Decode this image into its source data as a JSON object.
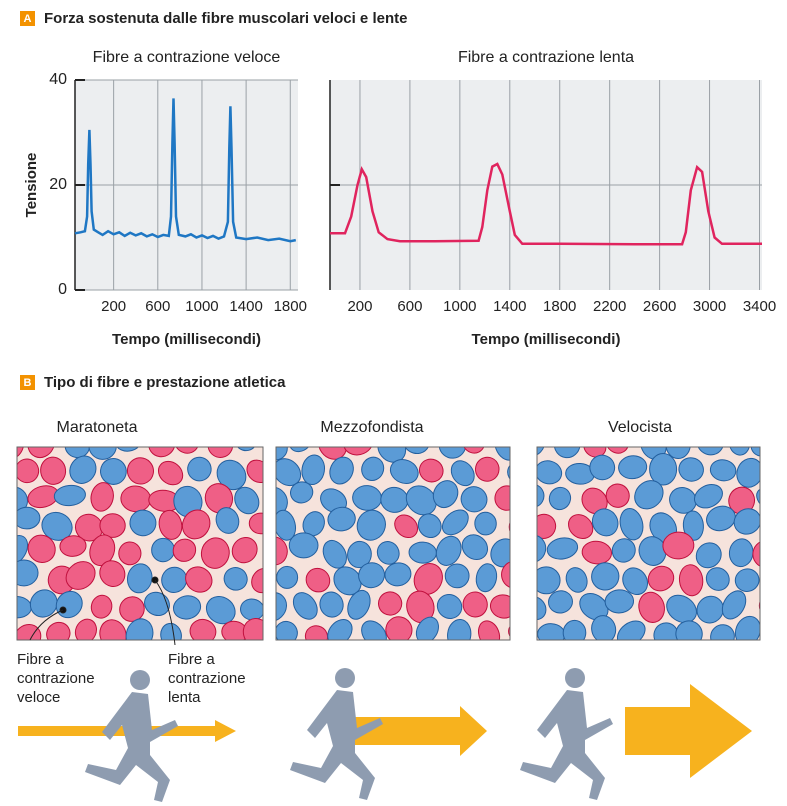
{
  "panel_a": {
    "letter": "A",
    "title": "Forza sostenuta dalle fibre muscolari veloci e lente"
  },
  "chart_data": [
    {
      "type": "line",
      "title": "Fibre a contrazione veloce",
      "y_label": "Tensione",
      "x_label": "Tempo (millisecondi)",
      "color": "#1f77c4",
      "xlim": [
        -150,
        1870
      ],
      "xticks": [
        200,
        600,
        1000,
        1400,
        1800
      ],
      "ylim": [
        0,
        40
      ],
      "yticks": [
        0,
        20,
        40
      ],
      "grid": true,
      "x": [
        -150,
        -100,
        -60,
        -40,
        -30,
        -20,
        -10,
        0,
        20,
        60,
        100,
        150,
        200,
        250,
        300,
        350,
        400,
        450,
        500,
        550,
        600,
        650,
        700,
        720,
        732,
        742,
        752,
        765,
        790,
        850,
        900,
        950,
        1000,
        1050,
        1100,
        1150,
        1200,
        1235,
        1248,
        1258,
        1268,
        1282,
        1310,
        1400,
        1500,
        1600,
        1700,
        1800,
        1850
      ],
      "values": [
        10.8,
        11,
        11.2,
        14,
        24,
        30.5,
        24,
        15,
        11.5,
        11,
        10.5,
        11.2,
        10.6,
        11,
        10.3,
        10.9,
        10.4,
        10.8,
        10.2,
        10.6,
        10.1,
        10.5,
        10.3,
        14,
        28,
        36.5,
        28,
        14,
        10.5,
        10.2,
        10.6,
        10,
        10.4,
        9.9,
        10.3,
        9.8,
        10.2,
        13,
        27,
        35,
        27,
        13,
        10,
        9.7,
        10,
        9.5,
        9.8,
        9.3,
        9.5
      ]
    },
    {
      "type": "line",
      "title": "Fibre a contrazione lenta",
      "x_label": "Tempo (millisecondi)",
      "color": "#e0245e",
      "xlim": [
        -40,
        3420
      ],
      "xticks": [
        200,
        600,
        1000,
        1400,
        1800,
        2200,
        2600,
        3000,
        3400
      ],
      "ylim": [
        0,
        40
      ],
      "yticks": [
        20
      ],
      "grid": true,
      "x": [
        -40,
        80,
        130,
        180,
        215,
        250,
        300,
        350,
        420,
        520,
        800,
        1150,
        1180,
        1220,
        1260,
        1300,
        1340,
        1400,
        1440,
        1500,
        1800,
        2400,
        2780,
        2810,
        2850,
        2900,
        2940,
        2990,
        3040,
        3100,
        3420
      ],
      "values": [
        10.8,
        10.8,
        14,
        20,
        23,
        21.5,
        15,
        11,
        9.7,
        9.3,
        9.3,
        9.4,
        12,
        19,
        23.5,
        24,
        22,
        15,
        10.5,
        8.8,
        8.8,
        8.7,
        8.7,
        11,
        19,
        23.4,
        22.5,
        15,
        10,
        8.8,
        8.8
      ]
    }
  ],
  "panel_b": {
    "letter": "B",
    "title": "Tipo di fibre e prestazione atletica",
    "columns": [
      "Maratoneta",
      "Mezzofondista",
      "Velocista"
    ],
    "fast_label": "Fibre a contrazione veloce",
    "slow_label": "Fibre a contrazione lenta"
  }
}
